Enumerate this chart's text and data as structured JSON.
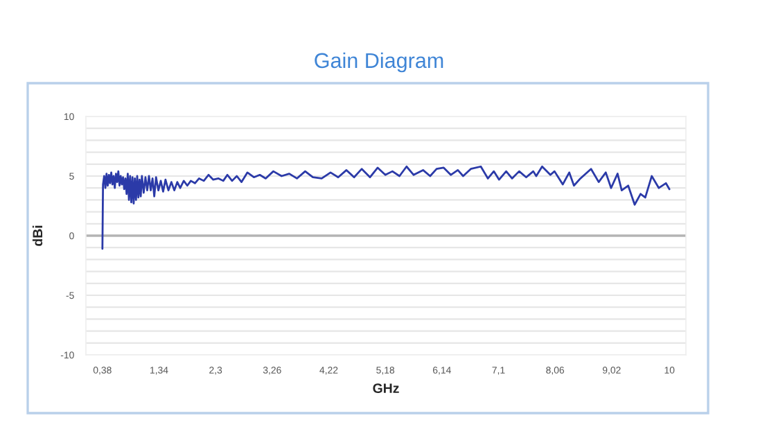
{
  "chart_data": {
    "type": "line",
    "title": "Gain Diagram",
    "xlabel": "GHz",
    "ylabel": "dBi",
    "xlim": [
      0.1,
      10.28
    ],
    "ylim": [
      -10,
      10
    ],
    "xticks": [
      {
        "value": 0.38,
        "label": "0,38"
      },
      {
        "value": 1.34,
        "label": "1,34"
      },
      {
        "value": 2.3,
        "label": "2,3"
      },
      {
        "value": 3.26,
        "label": "3,26"
      },
      {
        "value": 4.22,
        "label": "4,22"
      },
      {
        "value": 5.18,
        "label": "5,18"
      },
      {
        "value": 6.14,
        "label": "6,14"
      },
      {
        "value": 7.1,
        "label": "7,1"
      },
      {
        "value": 8.06,
        "label": "8,06"
      },
      {
        "value": 9.02,
        "label": "9,02"
      },
      10
    ],
    "yticks": [
      -10,
      {
        "value": -9,
        "label": null
      },
      {
        "value": -8,
        "label": null
      },
      {
        "value": -7,
        "label": null
      },
      {
        "value": -6,
        "label": null
      },
      -5,
      {
        "value": -4,
        "label": null
      },
      {
        "value": -3,
        "label": null
      },
      {
        "value": -2,
        "label": null
      },
      {
        "value": -1,
        "label": null
      },
      0,
      {
        "value": 1,
        "label": null
      },
      {
        "value": 2,
        "label": null
      },
      {
        "value": 3,
        "label": null
      },
      {
        "value": 4,
        "label": null
      },
      5,
      {
        "value": 6,
        "label": null
      },
      {
        "value": 7,
        "label": null
      },
      {
        "value": 8,
        "label": null
      },
      {
        "value": 9,
        "label": null
      },
      10
    ],
    "grid": "y",
    "legend": false,
    "marker": "none",
    "line_style": "solid",
    "ref_lines": [
      {
        "axis": "y",
        "value": 0,
        "color": "#b4b4b4"
      }
    ],
    "series": [
      {
        "color": "#2b3aa8",
        "x": [
          0.38,
          0.39,
          0.41,
          0.43,
          0.45,
          0.47,
          0.49,
          0.51,
          0.53,
          0.55,
          0.57,
          0.59,
          0.61,
          0.63,
          0.65,
          0.67,
          0.69,
          0.71,
          0.73,
          0.75,
          0.77,
          0.79,
          0.81,
          0.83,
          0.85,
          0.87,
          0.89,
          0.91,
          0.93,
          0.95,
          0.97,
          0.99,
          1.01,
          1.03,
          1.05,
          1.08,
          1.11,
          1.14,
          1.17,
          1.2,
          1.23,
          1.26,
          1.29,
          1.33,
          1.37,
          1.41,
          1.45,
          1.5,
          1.55,
          1.6,
          1.65,
          1.7,
          1.76,
          1.82,
          1.88,
          1.95,
          2.02,
          2.1,
          2.18,
          2.26,
          2.35,
          2.43,
          2.5,
          2.58,
          2.66,
          2.74,
          2.84,
          2.95,
          3.05,
          3.15,
          3.28,
          3.42,
          3.55,
          3.68,
          3.82,
          3.95,
          4.1,
          4.25,
          4.38,
          4.52,
          4.65,
          4.78,
          4.92,
          5.05,
          5.18,
          5.3,
          5.42,
          5.54,
          5.66,
          5.82,
          5.94,
          6.05,
          6.17,
          6.29,
          6.41,
          6.5,
          6.63,
          6.8,
          6.92,
          7.02,
          7.11,
          7.23,
          7.33,
          7.45,
          7.57,
          7.69,
          7.74,
          7.84,
          7.98,
          8.05,
          8.19,
          8.3,
          8.38,
          8.49,
          8.67,
          8.8,
          8.92,
          9.01,
          9.12,
          9.19,
          9.3,
          9.41,
          9.51,
          9.59,
          9.7,
          9.82,
          9.94,
          10.0
        ],
        "values": [
          -1.1,
          4.3,
          5.0,
          4.0,
          5.2,
          4.2,
          5.1,
          4.4,
          5.3,
          4.3,
          5.0,
          4.0,
          5.2,
          4.5,
          5.4,
          4.2,
          5.0,
          4.3,
          4.9,
          3.9,
          4.8,
          3.5,
          5.2,
          3.0,
          5.0,
          2.8,
          4.9,
          2.7,
          4.8,
          3.0,
          5.0,
          3.2,
          4.7,
          3.3,
          5.0,
          3.6,
          4.9,
          3.8,
          5.0,
          3.8,
          4.8,
          3.3,
          4.9,
          3.8,
          4.6,
          3.7,
          4.7,
          3.8,
          4.5,
          3.8,
          4.5,
          4.0,
          4.6,
          4.2,
          4.6,
          4.4,
          4.8,
          4.6,
          5.1,
          4.7,
          4.8,
          4.6,
          5.1,
          4.6,
          5.0,
          4.5,
          5.3,
          4.9,
          5.1,
          4.8,
          5.4,
          5.0,
          5.2,
          4.8,
          5.4,
          4.9,
          4.8,
          5.3,
          4.9,
          5.5,
          4.9,
          5.6,
          4.9,
          5.7,
          5.1,
          5.4,
          5.0,
          5.8,
          5.1,
          5.5,
          5.0,
          5.6,
          5.7,
          5.1,
          5.5,
          5.0,
          5.6,
          5.8,
          4.8,
          5.4,
          4.7,
          5.4,
          4.8,
          5.4,
          4.9,
          5.4,
          5.0,
          5.8,
          5.1,
          5.4,
          4.3,
          5.3,
          4.2,
          4.8,
          5.6,
          4.5,
          5.3,
          4.0,
          5.2,
          3.8,
          4.2,
          2.6,
          3.5,
          3.2,
          5.0,
          4.0,
          4.4,
          3.9
        ]
      }
    ]
  }
}
